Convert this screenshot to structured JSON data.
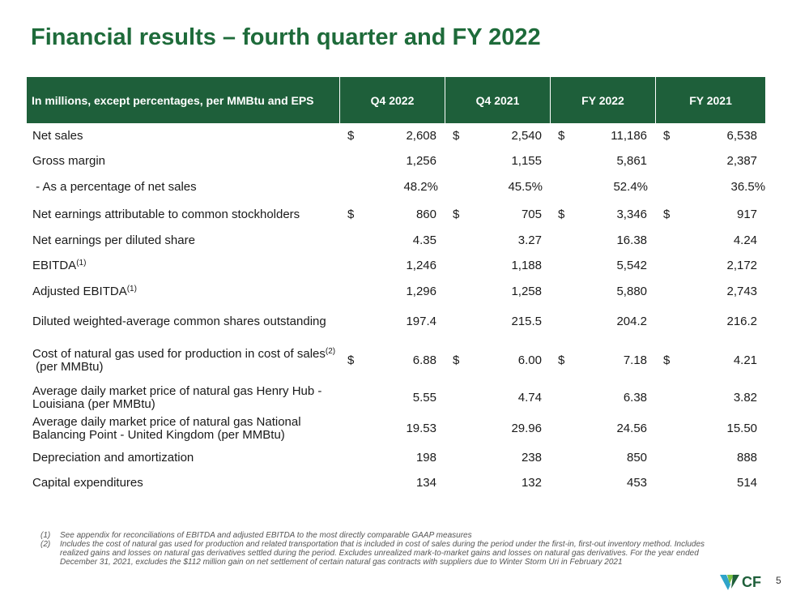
{
  "title": "Financial results – fourth quarter and FY 2022",
  "table": {
    "header": {
      "label": "In millions, except percentages, per MMBtu and EPS",
      "columns": [
        "Q4 2022",
        "Q4 2021",
        "FY 2022",
        "FY 2021"
      ]
    },
    "rows": [
      {
        "label": "Net sales",
        "sup": "",
        "label_suffix": "",
        "dollar": true,
        "values": [
          "2,608",
          "2,540",
          "11,186",
          "6,538"
        ]
      },
      {
        "label": "Gross margin",
        "sup": "",
        "label_suffix": "",
        "dollar": false,
        "values": [
          "1,256",
          "1,155",
          "5,861",
          "2,387"
        ]
      },
      {
        "label": " - As a percentage of net sales",
        "sup": "",
        "label_suffix": "",
        "dollar": false,
        "percent": true,
        "values": [
          "48.2",
          "45.5",
          "52.4",
          "36.5"
        ],
        "percent_sign": "%"
      },
      {
        "label": "Net earnings attributable to common stockholders",
        "sup": "",
        "label_suffix": "",
        "dollar": true,
        "values": [
          "860",
          "705",
          "3,346",
          "917"
        ]
      },
      {
        "label": "Net earnings per diluted share",
        "sup": "",
        "label_suffix": "",
        "dollar": false,
        "values": [
          "4.35",
          "3.27",
          "16.38",
          "4.24"
        ]
      },
      {
        "label": "EBITDA",
        "sup": "(1)",
        "label_suffix": "",
        "dollar": false,
        "values": [
          "1,246",
          "1,188",
          "5,542",
          "2,172"
        ]
      },
      {
        "label": "Adjusted EBITDA",
        "sup": "(1)",
        "label_suffix": "",
        "dollar": false,
        "values": [
          "1,296",
          "1,258",
          "5,880",
          "2,743"
        ]
      },
      {
        "label": "Diluted weighted-average common shares outstanding",
        "sup": "",
        "label_suffix": "",
        "dollar": false,
        "values": [
          "197.4",
          "215.5",
          "204.2",
          "216.2"
        ]
      },
      {
        "label": "Cost of natural gas used for production in cost of sales",
        "sup": "(2)",
        "label_suffix": " (per MMBtu)",
        "dollar": true,
        "values": [
          "6.88",
          "6.00",
          "7.18",
          "4.21"
        ]
      },
      {
        "label": "Average daily market price of natural gas Henry Hub - Louisiana (per MMBtu)",
        "sup": "",
        "label_suffix": "",
        "dollar": false,
        "values": [
          "5.55",
          "4.74",
          "6.38",
          "3.82"
        ]
      },
      {
        "label": "Average daily market price of natural gas National Balancing Point - United Kingdom (per MMBtu)",
        "sup": "",
        "label_suffix": "",
        "dollar": false,
        "values": [
          "19.53",
          "29.96",
          "24.56",
          "15.50"
        ]
      },
      {
        "label": "Depreciation and amortization",
        "sup": "",
        "label_suffix": "",
        "dollar": false,
        "values": [
          "198",
          "238",
          "850",
          "888"
        ]
      },
      {
        "label": "Capital expenditures",
        "sup": "",
        "label_suffix": "",
        "dollar": false,
        "values": [
          "134",
          "132",
          "453",
          "514"
        ]
      }
    ],
    "currency_symbol": "$"
  },
  "footnotes": [
    {
      "num": "(1)",
      "text": "See appendix for reconciliations of EBITDA and adjusted EBITDA to the most directly comparable GAAP measures"
    },
    {
      "num": "(2)",
      "text": "Includes the cost of natural gas used for production and related transportation that is included in cost of sales during the period under the first-in, first-out inventory method.  Includes realized gains and losses on natural gas derivatives settled during the period. Excludes unrealized mark-to-market gains and losses on natural gas derivatives. For the year ended December 31, 2021, excludes the $112 million gain on net settlement of certain natural gas contracts with suppliers due to Winter Storm Uri in February 2021"
    }
  ],
  "logo": {
    "text": "CF",
    "icon": "cf-logo-icon",
    "color": "#1e5f3a",
    "accent": "#2fa4c9"
  },
  "page_number": "5",
  "colors": {
    "title": "#1e6b3a",
    "header_bg": "#1e5f3a"
  }
}
